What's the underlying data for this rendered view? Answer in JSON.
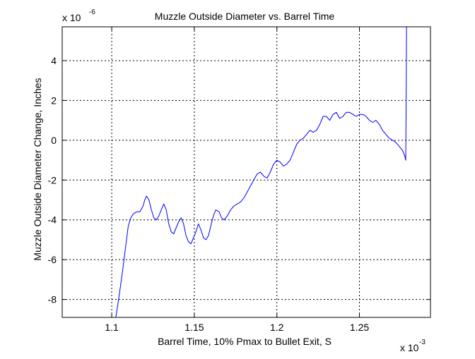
{
  "chart_data": {
    "type": "line",
    "title": "Muzzle Outside Diameter vs. Barrel Time",
    "xlabel": "Barrel Time, 10% Pmax to Bullet Exit, S",
    "ylabel": "Muzzle Outside Diameter Change, Inches",
    "x_multiplier": {
      "base": "x 10",
      "exponent": "-3"
    },
    "y_multiplier": {
      "base": "x 10",
      "exponent": "-6"
    },
    "xlim": [
      1.07,
      1.293
    ],
    "ylim": [
      -8.9,
      5.7
    ],
    "xticks": [
      1.1,
      1.15,
      1.2,
      1.25
    ],
    "xtick_labels": [
      "1.1",
      "1.15",
      "1.2",
      "1.25"
    ],
    "yticks": [
      -8,
      -6,
      -4,
      -2,
      0,
      2,
      4
    ],
    "ytick_labels": [
      "-8",
      "-6",
      "-4",
      "-2",
      "0",
      "2",
      "4"
    ],
    "grid": true,
    "series": [
      {
        "color": "#0000ff",
        "x": [
          1.1025,
          1.1045,
          1.1065,
          1.1085,
          1.11,
          1.1115,
          1.113,
          1.115,
          1.117,
          1.119,
          1.12,
          1.121,
          1.1225,
          1.124,
          1.1255,
          1.127,
          1.1285,
          1.13,
          1.1315,
          1.133,
          1.1345,
          1.136,
          1.1375,
          1.139,
          1.1405,
          1.142,
          1.1435,
          1.145,
          1.1465,
          1.148,
          1.1495,
          1.151,
          1.1525,
          1.154,
          1.1555,
          1.157,
          1.1585,
          1.16,
          1.1615,
          1.163,
          1.165,
          1.1665,
          1.168,
          1.17,
          1.172,
          1.174,
          1.176,
          1.178,
          1.18,
          1.182,
          1.184,
          1.186,
          1.188,
          1.19,
          1.192,
          1.194,
          1.196,
          1.198,
          1.2,
          1.202,
          1.204,
          1.206,
          1.208,
          1.21,
          1.212,
          1.214,
          1.216,
          1.218,
          1.22,
          1.222,
          1.224,
          1.226,
          1.228,
          1.23,
          1.232,
          1.234,
          1.236,
          1.238,
          1.24,
          1.242,
          1.244,
          1.246,
          1.248,
          1.25,
          1.252,
          1.254,
          1.256,
          1.258,
          1.26,
          1.262,
          1.264,
          1.266,
          1.268,
          1.27,
          1.272,
          1.274,
          1.276,
          1.2775,
          1.2777,
          1.278,
          1.2782,
          1.2784,
          1.2785
        ],
        "y": [
          -8.9,
          -7.8,
          -6.6,
          -5.3,
          -4.3,
          -3.9,
          -3.7,
          -3.6,
          -3.6,
          -3.3,
          -3.0,
          -2.8,
          -3.0,
          -3.5,
          -3.9,
          -4.0,
          -3.8,
          -3.5,
          -3.2,
          -3.5,
          -4.2,
          -4.6,
          -4.7,
          -4.4,
          -4.1,
          -3.9,
          -4.2,
          -4.8,
          -5.1,
          -5.2,
          -4.9,
          -4.6,
          -4.2,
          -4.5,
          -4.9,
          -5.0,
          -4.8,
          -4.3,
          -3.8,
          -3.5,
          -3.6,
          -3.9,
          -4.0,
          -3.8,
          -3.5,
          -3.3,
          -3.2,
          -3.1,
          -2.9,
          -2.6,
          -2.3,
          -2.0,
          -1.7,
          -1.6,
          -1.8,
          -1.9,
          -1.6,
          -1.2,
          -1.0,
          -1.1,
          -1.3,
          -1.2,
          -1.0,
          -0.6,
          -0.2,
          0.0,
          0.1,
          0.3,
          0.5,
          0.4,
          0.5,
          0.8,
          1.2,
          1.2,
          1.0,
          1.3,
          1.4,
          1.1,
          1.2,
          1.4,
          1.4,
          1.3,
          1.2,
          1.3,
          1.3,
          1.2,
          1.0,
          0.9,
          1.0,
          0.8,
          0.5,
          0.3,
          0.1,
          0.0,
          -0.1,
          -0.3,
          -0.5,
          -0.8,
          -0.9,
          -1.0,
          0.8,
          4.0,
          5.7
        ]
      }
    ]
  }
}
